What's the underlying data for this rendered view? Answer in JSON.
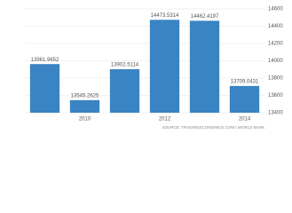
{
  "chart_data": {
    "type": "bar",
    "categories": [
      null,
      "2010",
      null,
      "2012",
      null,
      "2014"
    ],
    "values": [
      13961.9652,
      13545.2625,
      13902.5114,
      14473.5314,
      14462.4197,
      13709.0431
    ],
    "color": "#3a84c3",
    "ylim": [
      13400,
      14600
    ],
    "yticks": [
      13400,
      13600,
      13800,
      14000,
      14200,
      14400,
      14600
    ],
    "grid": true,
    "source": "SOURCE: TRADINGECONOMICS.COM | WORLD BANK"
  }
}
